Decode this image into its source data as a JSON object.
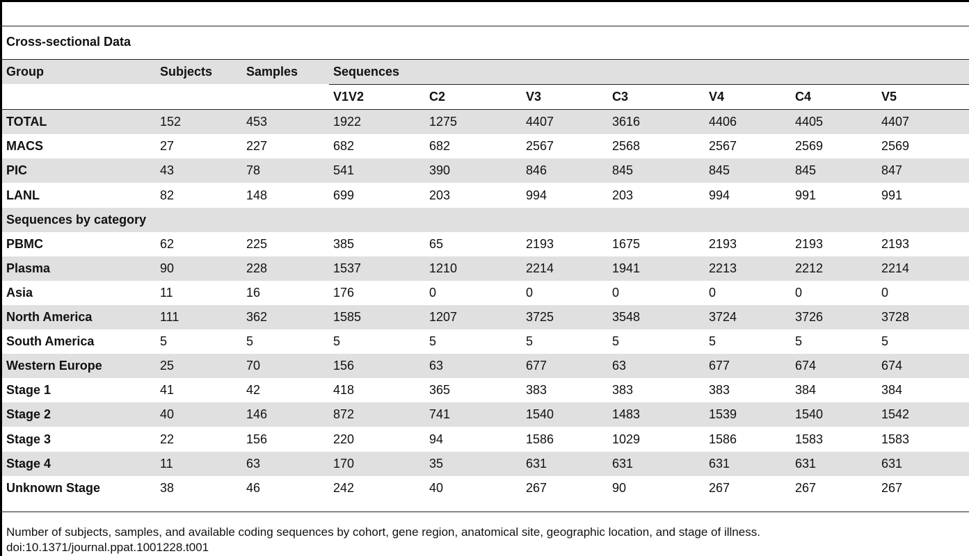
{
  "section_title": "Cross-sectional Data",
  "header": {
    "group": "Group",
    "subjects": "Subjects",
    "samples": "Samples",
    "sequences": "Sequences"
  },
  "subheader": [
    "V1V2",
    "C2",
    "V3",
    "C3",
    "V4",
    "C4",
    "V5"
  ],
  "rows": [
    {
      "label": "TOTAL",
      "values": [
        "152",
        "453",
        "1922",
        "1275",
        "4407",
        "3616",
        "4406",
        "4405",
        "4407"
      ]
    },
    {
      "label": "MACS",
      "values": [
        "27",
        "227",
        "682",
        "682",
        "2567",
        "2568",
        "2567",
        "2569",
        "2569"
      ]
    },
    {
      "label": "PIC",
      "values": [
        "43",
        "78",
        "541",
        "390",
        "846",
        "845",
        "845",
        "845",
        "847"
      ]
    },
    {
      "label": "LANL",
      "values": [
        "82",
        "148",
        "699",
        "203",
        "994",
        "203",
        "994",
        "991",
        "991"
      ]
    }
  ],
  "category_title": "Sequences by category",
  "category_rows": [
    {
      "label": "PBMC",
      "values": [
        "62",
        "225",
        "385",
        "65",
        "2193",
        "1675",
        "2193",
        "2193",
        "2193"
      ]
    },
    {
      "label": "Plasma",
      "values": [
        "90",
        "228",
        "1537",
        "1210",
        "2214",
        "1941",
        "2213",
        "2212",
        "2214"
      ]
    },
    {
      "label": "Asia",
      "values": [
        "11",
        "16",
        "176",
        "0",
        "0",
        "0",
        "0",
        "0",
        "0"
      ]
    },
    {
      "label": "North America",
      "values": [
        "111",
        "362",
        "1585",
        "1207",
        "3725",
        "3548",
        "3724",
        "3726",
        "3728"
      ]
    },
    {
      "label": "South America",
      "values": [
        "5",
        "5",
        "5",
        "5",
        "5",
        "5",
        "5",
        "5",
        "5"
      ]
    },
    {
      "label": "Western Europe",
      "values": [
        "25",
        "70",
        "156",
        "63",
        "677",
        "63",
        "677",
        "674",
        "674"
      ]
    },
    {
      "label": "Stage 1",
      "values": [
        "41",
        "42",
        "418",
        "365",
        "383",
        "383",
        "383",
        "384",
        "384"
      ]
    },
    {
      "label": "Stage 2",
      "values": [
        "40",
        "146",
        "872",
        "741",
        "1540",
        "1483",
        "1539",
        "1540",
        "1542"
      ]
    },
    {
      "label": "Stage 3",
      "values": [
        "22",
        "156",
        "220",
        "94",
        "1586",
        "1029",
        "1586",
        "1583",
        "1583"
      ]
    },
    {
      "label": "Stage 4",
      "values": [
        "11",
        "63",
        "170",
        "35",
        "631",
        "631",
        "631",
        "631",
        "631"
      ]
    },
    {
      "label": "Unknown Stage",
      "values": [
        "38",
        "46",
        "242",
        "40",
        "267",
        "90",
        "267",
        "267",
        "267"
      ]
    }
  ],
  "footer": {
    "caption": "Number of subjects, samples, and available coding sequences by cohort, gene region, anatomical site, geographic location, and stage of illness.",
    "doi": "doi:10.1371/journal.ppat.1001228.t001"
  }
}
